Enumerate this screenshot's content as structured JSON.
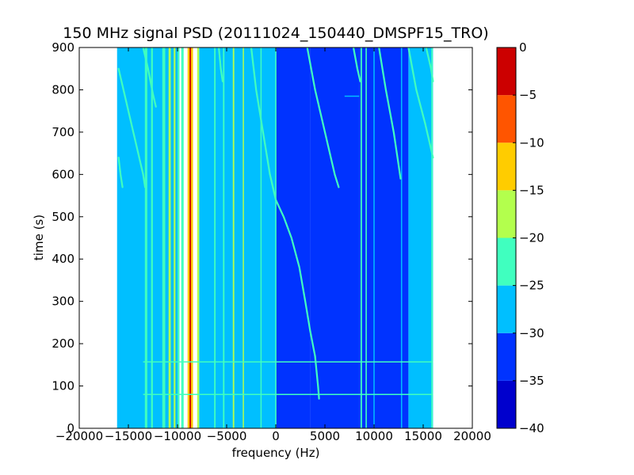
{
  "chart_data": {
    "type": "heatmap",
    "title": "150 MHz signal PSD (20111024_150440_DMSPF15_TRO)",
    "xlabel": "frequency (Hz)",
    "ylabel": "time (s)",
    "xlim": [
      -20000,
      20000
    ],
    "ylim": [
      0,
      900
    ],
    "data_extent": {
      "x": [
        -16000,
        16000
      ],
      "y": [
        0,
        900
      ]
    },
    "x_ticks": [
      -20000,
      -15000,
      -10000,
      -5000,
      0,
      5000,
      10000,
      15000,
      20000
    ],
    "x_tick_labels": [
      "−20000",
      "−15000",
      "−10000",
      "−5000",
      "0",
      "5000",
      "10000",
      "15000",
      "20000"
    ],
    "y_ticks": [
      0,
      100,
      200,
      300,
      400,
      500,
      600,
      700,
      800,
      900
    ],
    "y_tick_labels": [
      "0",
      "100",
      "200",
      "300",
      "400",
      "500",
      "600",
      "700",
      "800",
      "900"
    ],
    "colorbar": {
      "levels": [
        -40,
        -35,
        -30,
        -25,
        -20,
        -15,
        -10,
        -5,
        0
      ],
      "tick_labels": [
        "−40",
        "−35",
        "−30",
        "−25",
        "−20",
        "−15",
        "−10",
        "−5",
        "0"
      ],
      "colors": [
        "#0000cd",
        "#0033ff",
        "#00bfff",
        "#40ffbf",
        "#b3ff4d",
        "#ffcc00",
        "#ff5500",
        "#cc0000"
      ]
    },
    "background_regions": [
      {
        "x": [
          -16000,
          -9800
        ],
        "level": -27
      },
      {
        "x": [
          -7800,
          -5000
        ],
        "level": -27
      },
      {
        "x": [
          -5000,
          0
        ],
        "level": -30
      },
      {
        "x": [
          0,
          3500
        ],
        "level": -32
      },
      {
        "x": [
          3500,
          8500
        ],
        "level": -34
      },
      {
        "x": [
          8500,
          13500
        ],
        "level": -33
      },
      {
        "x": [
          13500,
          16000
        ],
        "level": -30
      }
    ],
    "vertical_lines": [
      {
        "x": -16000,
        "level": -27,
        "width": 300
      },
      {
        "x": -13200,
        "level": -22,
        "width": 250
      },
      {
        "x": -12600,
        "level": -22,
        "width": 180
      },
      {
        "x": -11400,
        "level": -25,
        "width": 300
      },
      {
        "x": -10800,
        "level": -20,
        "width": 220
      },
      {
        "x": -10300,
        "level": -20,
        "width": 180
      },
      {
        "x": -9900,
        "level": -22,
        "width": 180
      },
      {
        "x": -9500,
        "level": -25,
        "width": 250
      },
      {
        "x": -8700,
        "level": -12,
        "width": 550
      },
      {
        "x": -8700,
        "level": -3,
        "width": 150
      },
      {
        "x": -7900,
        "level": -20,
        "width": 200
      },
      {
        "x": -6200,
        "level": -25,
        "width": 150
      },
      {
        "x": -5300,
        "level": -25,
        "width": 150
      },
      {
        "x": -4300,
        "level": -20,
        "width": 150
      },
      {
        "x": -3300,
        "level": -20,
        "width": 120
      },
      {
        "x": -1500,
        "level": -25,
        "width": 100
      },
      {
        "x": 0,
        "level": -22,
        "width": 130
      },
      {
        "x": 8700,
        "level": -22,
        "width": 150
      },
      {
        "x": 9200,
        "level": -25,
        "width": 130
      },
      {
        "x": 10000,
        "level": -28,
        "width": 100
      },
      {
        "x": 12800,
        "level": -28,
        "width": 120
      },
      {
        "x": 15900,
        "level": -25,
        "width": 150
      }
    ],
    "horizontal_lines": [
      {
        "y": 80,
        "x": [
          -13500,
          16000
        ],
        "level": -25
      },
      {
        "y": 157,
        "x": [
          -13500,
          16000
        ],
        "level": -25
      },
      {
        "y": 785,
        "x": [
          7000,
          8500
        ],
        "level": -28
      }
    ],
    "traces": [
      {
        "level": -22,
        "points": [
          [
            -16000,
            850
          ],
          [
            -15500,
            800
          ],
          [
            -14500,
            700
          ],
          [
            -13500,
            600
          ],
          [
            -13300,
            570
          ]
        ]
      },
      {
        "level": -22,
        "points": [
          [
            -16000,
            640
          ],
          [
            -15800,
            600
          ],
          [
            -15600,
            570
          ]
        ]
      },
      {
        "level": -22,
        "points": [
          [
            -13500,
            900
          ],
          [
            -13000,
            850
          ],
          [
            -12500,
            790
          ],
          [
            -12200,
            760
          ]
        ]
      },
      {
        "level": -22,
        "points": [
          [
            -5800,
            900
          ],
          [
            -5600,
            850
          ],
          [
            -5400,
            820
          ]
        ]
      },
      {
        "level": -22,
        "points": [
          [
            -2500,
            900
          ],
          [
            -2000,
            800
          ],
          [
            -1300,
            700
          ],
          [
            -600,
            600
          ],
          [
            0,
            540
          ],
          [
            800,
            500
          ],
          [
            1600,
            450
          ],
          [
            2400,
            380
          ],
          [
            3000,
            300
          ],
          [
            3500,
            230
          ],
          [
            4000,
            170
          ],
          [
            4300,
            100
          ],
          [
            4400,
            70
          ]
        ]
      },
      {
        "level": -25,
        "points": [
          [
            3200,
            900
          ],
          [
            4000,
            800
          ],
          [
            5000,
            700
          ],
          [
            6000,
            600
          ],
          [
            6400,
            570
          ]
        ]
      },
      {
        "level": -25,
        "points": [
          [
            10500,
            900
          ],
          [
            11200,
            800
          ],
          [
            12000,
            700
          ],
          [
            12700,
            590
          ]
        ]
      },
      {
        "level": -22,
        "points": [
          [
            13500,
            900
          ],
          [
            14300,
            800
          ],
          [
            15200,
            720
          ],
          [
            16000,
            640
          ]
        ]
      },
      {
        "level": -22,
        "points": [
          [
            15300,
            900
          ],
          [
            15800,
            850
          ],
          [
            16000,
            820
          ]
        ]
      },
      {
        "level": -25,
        "points": [
          [
            7900,
            900
          ],
          [
            8300,
            850
          ],
          [
            8600,
            820
          ]
        ]
      }
    ]
  }
}
